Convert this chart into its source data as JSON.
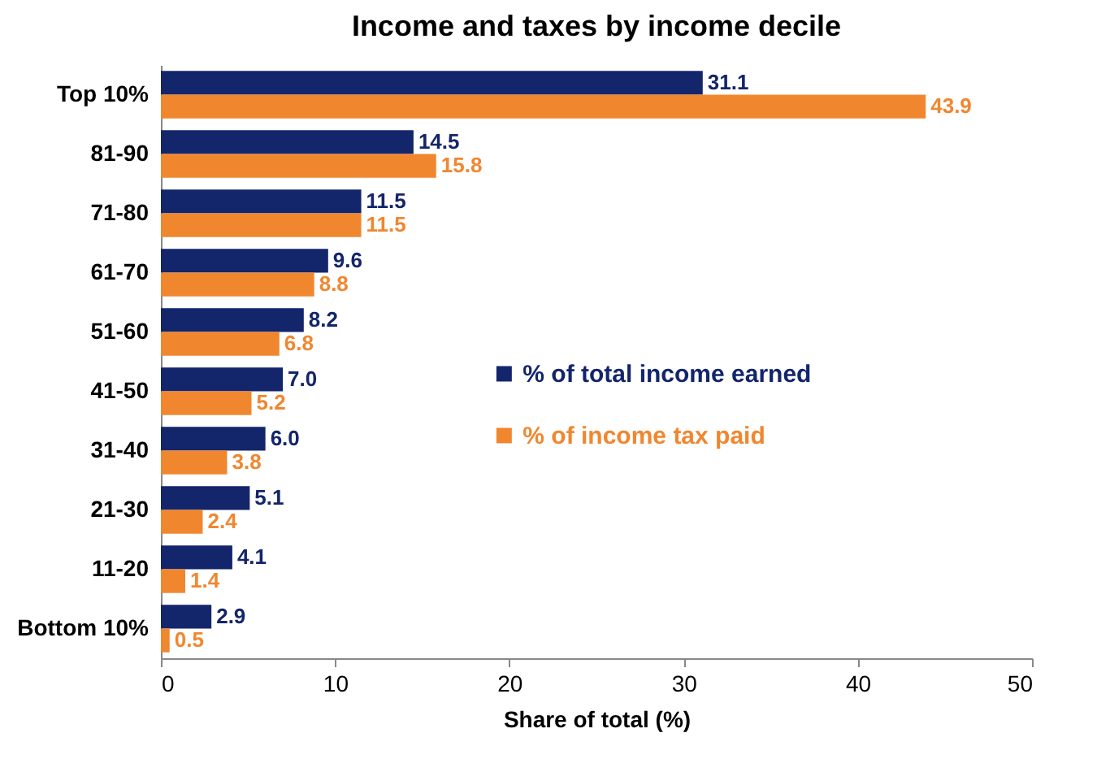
{
  "chart_data": {
    "type": "bar",
    "orientation": "horizontal",
    "title": "Income and taxes by income decile",
    "xlabel": "Share of total (%)",
    "categories": [
      "Top 10%",
      "81-90",
      "71-80",
      "61-70",
      "51-60",
      "41-50",
      "31-40",
      "21-30",
      "11-20",
      "Bottom 10%"
    ],
    "series": [
      {
        "name": "% of total income earned",
        "color": "#13256b",
        "values": [
          31.1,
          14.5,
          11.5,
          9.6,
          8.2,
          7.0,
          6.0,
          5.1,
          4.1,
          2.9
        ],
        "value_labels": [
          "31.1",
          "14.5",
          "11.5",
          "9.6",
          "8.2",
          "7.0",
          "6.0",
          "5.1",
          "4.1",
          "2.9"
        ]
      },
      {
        "name": "% of income tax paid",
        "color": "#f0872f",
        "values": [
          43.9,
          15.8,
          11.5,
          8.8,
          6.8,
          5.2,
          3.8,
          2.4,
          1.4,
          0.5
        ],
        "value_labels": [
          "43.9",
          "15.8",
          "11.5",
          "8.8",
          "6.8",
          "5.2",
          "3.8",
          "2.4",
          "1.4",
          "0.5"
        ]
      }
    ],
    "xlim": [
      0,
      50
    ],
    "xticks": [
      0,
      10,
      20,
      30,
      40,
      50
    ],
    "grid": false,
    "legend": "right"
  }
}
